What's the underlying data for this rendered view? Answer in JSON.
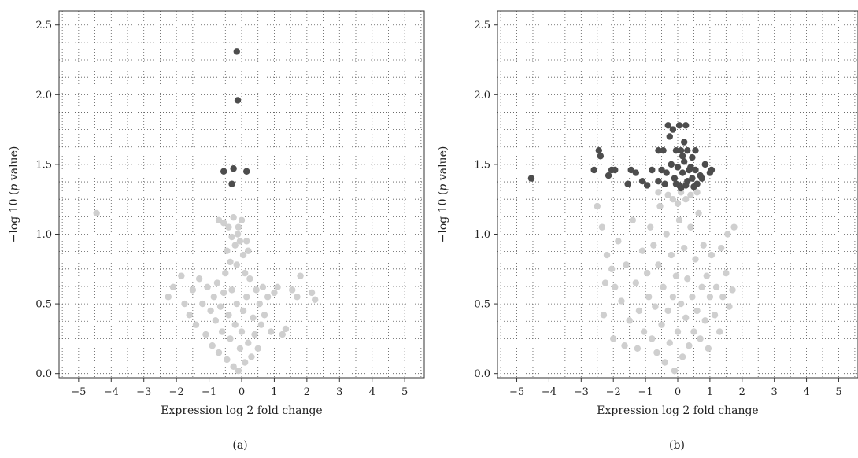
{
  "chart_data": [
    {
      "type": "scatter",
      "caption": "(a)",
      "xlabel": "Expression log 2 fold change",
      "ylabel_pre": "−log 10 (",
      "ylabel_italic": "p",
      "ylabel_post": " value)",
      "xlim": [
        -5.6,
        5.6
      ],
      "ylim": [
        -0.03,
        2.6
      ],
      "xticks": [
        -5,
        -4,
        -3,
        -2,
        -1,
        0,
        1,
        2,
        3,
        4,
        5
      ],
      "xtick_labels": [
        "−5",
        "−4",
        "−3",
        "−2",
        "−1",
        "0",
        "1",
        "2",
        "3",
        "4",
        "5"
      ],
      "yticks": [
        0.0,
        0.5,
        1.0,
        1.5,
        2.0,
        2.5
      ],
      "ytick_labels": [
        "0.0",
        "0.5",
        "1.0",
        "1.5",
        "2.0",
        "2.5"
      ],
      "grid": true,
      "colors": {
        "significant": "#4d4d4d",
        "non_significant": "#cfcfcf"
      },
      "series": [
        {
          "role": "non_significant",
          "points": [
            [
              -4.45,
              1.15
            ],
            [
              -2.25,
              0.55
            ],
            [
              -2.1,
              0.62
            ],
            [
              -1.85,
              0.7
            ],
            [
              -1.75,
              0.5
            ],
            [
              -1.6,
              0.42
            ],
            [
              -1.5,
              0.6
            ],
            [
              -1.4,
              0.35
            ],
            [
              -1.3,
              0.68
            ],
            [
              -1.2,
              0.5
            ],
            [
              -1.1,
              0.28
            ],
            [
              -1.05,
              0.62
            ],
            [
              -0.95,
              0.45
            ],
            [
              -0.9,
              0.2
            ],
            [
              -0.85,
              0.55
            ],
            [
              -0.8,
              0.38
            ],
            [
              -0.75,
              0.65
            ],
            [
              -0.7,
              0.15
            ],
            [
              -0.65,
              0.48
            ],
            [
              -0.6,
              0.3
            ],
            [
              -0.55,
              0.58
            ],
            [
              -0.5,
              0.72
            ],
            [
              -0.45,
              0.1
            ],
            [
              -0.4,
              0.42
            ],
            [
              -0.35,
              0.25
            ],
            [
              -0.3,
              0.6
            ],
            [
              -0.25,
              0.05
            ],
            [
              -0.2,
              0.35
            ],
            [
              -0.15,
              0.5
            ],
            [
              -0.1,
              0.02
            ],
            [
              -0.05,
              0.18
            ],
            [
              0.0,
              0.3
            ],
            [
              0.05,
              0.45
            ],
            [
              0.1,
              0.08
            ],
            [
              0.15,
              0.55
            ],
            [
              0.2,
              0.22
            ],
            [
              0.25,
              0.68
            ],
            [
              0.3,
              0.12
            ],
            [
              0.35,
              0.4
            ],
            [
              0.4,
              0.28
            ],
            [
              0.45,
              0.6
            ],
            [
              0.5,
              0.18
            ],
            [
              0.55,
              0.5
            ],
            [
              0.6,
              0.35
            ],
            [
              0.65,
              0.62
            ],
            [
              0.7,
              0.42
            ],
            [
              0.8,
              0.55
            ],
            [
              0.9,
              0.3
            ],
            [
              1.0,
              0.58
            ],
            [
              1.1,
              0.62
            ],
            [
              1.25,
              0.28
            ],
            [
              1.35,
              0.32
            ],
            [
              1.55,
              0.6
            ],
            [
              1.7,
              0.55
            ],
            [
              1.8,
              0.7
            ],
            [
              2.15,
              0.58
            ],
            [
              2.25,
              0.53
            ],
            [
              -0.7,
              1.1
            ],
            [
              -0.55,
              1.08
            ],
            [
              -0.4,
              1.05
            ],
            [
              -0.3,
              0.98
            ],
            [
              -0.2,
              0.92
            ],
            [
              -0.25,
              1.12
            ],
            [
              -0.12,
              1.0
            ],
            [
              -0.05,
              0.95
            ],
            [
              0.0,
              1.1
            ],
            [
              0.05,
              0.85
            ],
            [
              -0.35,
              0.8
            ],
            [
              -0.15,
              0.78
            ],
            [
              0.1,
              0.72
            ],
            [
              0.2,
              0.88
            ],
            [
              -0.45,
              0.88
            ],
            [
              0.15,
              0.95
            ],
            [
              -0.1,
              1.05
            ]
          ]
        },
        {
          "role": "significant",
          "points": [
            [
              -0.15,
              2.31
            ],
            [
              -0.12,
              1.96
            ],
            [
              -0.55,
              1.45
            ],
            [
              -0.25,
              1.47
            ],
            [
              0.15,
              1.45
            ],
            [
              -0.3,
              1.36
            ]
          ]
        }
      ]
    },
    {
      "type": "scatter",
      "caption": "(b)",
      "xlabel": "Expression log 2 fold change",
      "ylabel_pre": "−log 10 (",
      "ylabel_italic": "p",
      "ylabel_post": " value)",
      "xlim": [
        -5.6,
        5.6
      ],
      "ylim": [
        -0.03,
        2.6
      ],
      "xticks": [
        -5,
        -4,
        -3,
        -2,
        -1,
        0,
        1,
        2,
        3,
        4,
        5
      ],
      "xtick_labels": [
        "−5",
        "−4",
        "−3",
        "−2",
        "−1",
        "0",
        "1",
        "2",
        "3",
        "4",
        "5"
      ],
      "yticks": [
        0.0,
        0.5,
        1.0,
        1.5,
        2.0,
        2.5
      ],
      "ytick_labels": [
        "0.0",
        "0.5",
        "1.0",
        "1.5",
        "2.0",
        "2.5"
      ],
      "grid": true,
      "colors": {
        "significant": "#4d4d4d",
        "non_significant": "#cfcfcf"
      },
      "series": [
        {
          "role": "non_significant",
          "points": [
            [
              -2.5,
              1.2
            ],
            [
              -2.35,
              1.05
            ],
            [
              -2.2,
              0.85
            ],
            [
              -2.05,
              0.75
            ],
            [
              -1.95,
              0.62
            ],
            [
              -2.3,
              0.42
            ],
            [
              -1.85,
              0.95
            ],
            [
              -1.75,
              0.52
            ],
            [
              -1.6,
              0.78
            ],
            [
              -1.5,
              0.38
            ],
            [
              -1.4,
              1.1
            ],
            [
              -1.3,
              0.65
            ],
            [
              -1.2,
              0.45
            ],
            [
              -1.1,
              0.88
            ],
            [
              -1.05,
              0.3
            ],
            [
              -0.95,
              0.72
            ],
            [
              -0.9,
              0.55
            ],
            [
              -0.85,
              1.05
            ],
            [
              -0.8,
              0.25
            ],
            [
              -0.75,
              0.92
            ],
            [
              -0.7,
              0.48
            ],
            [
              -0.65,
              0.15
            ],
            [
              -0.6,
              0.78
            ],
            [
              -0.55,
              1.2
            ],
            [
              -0.5,
              0.35
            ],
            [
              -0.45,
              0.62
            ],
            [
              -0.4,
              0.08
            ],
            [
              -0.35,
              1.0
            ],
            [
              -0.3,
              0.45
            ],
            [
              -0.25,
              0.22
            ],
            [
              -0.2,
              0.85
            ],
            [
              -0.15,
              0.55
            ],
            [
              -0.1,
              0.02
            ],
            [
              -0.05,
              0.7
            ],
            [
              0.0,
              0.3
            ],
            [
              0.05,
              1.1
            ],
            [
              0.1,
              0.5
            ],
            [
              0.15,
              0.12
            ],
            [
              0.2,
              0.9
            ],
            [
              0.25,
              0.4
            ],
            [
              0.3,
              0.68
            ],
            [
              0.35,
              0.2
            ],
            [
              0.4,
              1.05
            ],
            [
              0.45,
              0.55
            ],
            [
              0.5,
              0.3
            ],
            [
              0.55,
              0.82
            ],
            [
              0.6,
              0.45
            ],
            [
              0.65,
              1.15
            ],
            [
              0.7,
              0.25
            ],
            [
              0.75,
              0.62
            ],
            [
              0.8,
              0.92
            ],
            [
              0.85,
              0.38
            ],
            [
              0.9,
              0.7
            ],
            [
              0.95,
              0.18
            ],
            [
              1.0,
              0.55
            ],
            [
              1.05,
              0.85
            ],
            [
              1.15,
              0.42
            ],
            [
              1.2,
              0.62
            ],
            [
              1.3,
              0.3
            ],
            [
              1.4,
              0.55
            ],
            [
              1.5,
              0.72
            ],
            [
              1.6,
              0.48
            ],
            [
              1.7,
              0.6
            ],
            [
              1.75,
              1.05
            ],
            [
              1.55,
              1.0
            ],
            [
              1.35,
              0.9
            ],
            [
              -2.25,
              0.65
            ],
            [
              -2.0,
              0.25
            ],
            [
              -1.65,
              0.2
            ],
            [
              -1.25,
              0.18
            ],
            [
              -0.3,
              1.28
            ],
            [
              -0.15,
              1.25
            ],
            [
              0.0,
              1.22
            ],
            [
              0.1,
              1.3
            ],
            [
              0.25,
              1.25
            ],
            [
              0.4,
              1.28
            ],
            [
              0.6,
              1.3
            ],
            [
              -0.6,
              1.3
            ]
          ]
        },
        {
          "role": "significant",
          "points": [
            [
              -4.55,
              1.4
            ],
            [
              -2.45,
              1.6
            ],
            [
              -2.4,
              1.56
            ],
            [
              -2.6,
              1.46
            ],
            [
              -2.05,
              1.46
            ],
            [
              -1.95,
              1.46
            ],
            [
              -2.15,
              1.42
            ],
            [
              -1.45,
              1.46
            ],
            [
              -1.3,
              1.44
            ],
            [
              -1.1,
              1.38
            ],
            [
              -0.95,
              1.35
            ],
            [
              -1.55,
              1.36
            ],
            [
              -0.8,
              1.46
            ],
            [
              -0.6,
              1.6
            ],
            [
              -0.45,
              1.6
            ],
            [
              -0.3,
              1.78
            ],
            [
              -0.25,
              1.7
            ],
            [
              -0.15,
              1.75
            ],
            [
              0.05,
              1.78
            ],
            [
              0.25,
              1.78
            ],
            [
              -0.05,
              1.6
            ],
            [
              0.1,
              1.6
            ],
            [
              0.3,
              1.6
            ],
            [
              0.55,
              1.6
            ],
            [
              0.2,
              1.66
            ],
            [
              0.45,
              1.55
            ],
            [
              -0.5,
              1.46
            ],
            [
              -0.35,
              1.44
            ],
            [
              -0.2,
              1.5
            ],
            [
              -0.1,
              1.4
            ],
            [
              0.0,
              1.48
            ],
            [
              0.05,
              1.35
            ],
            [
              0.15,
              1.44
            ],
            [
              0.2,
              1.52
            ],
            [
              0.3,
              1.38
            ],
            [
              0.35,
              1.46
            ],
            [
              0.45,
              1.4
            ],
            [
              0.55,
              1.46
            ],
            [
              0.6,
              1.36
            ],
            [
              0.7,
              1.42
            ],
            [
              0.5,
              1.34
            ],
            [
              -0.4,
              1.36
            ],
            [
              -0.6,
              1.38
            ],
            [
              0.1,
              1.33
            ],
            [
              0.25,
              1.35
            ],
            [
              -0.05,
              1.36
            ],
            [
              0.85,
              1.5
            ],
            [
              1.0,
              1.44
            ],
            [
              1.05,
              1.46
            ],
            [
              0.4,
              1.48
            ],
            [
              0.75,
              1.4
            ],
            [
              0.15,
              1.56
            ]
          ]
        }
      ]
    }
  ]
}
